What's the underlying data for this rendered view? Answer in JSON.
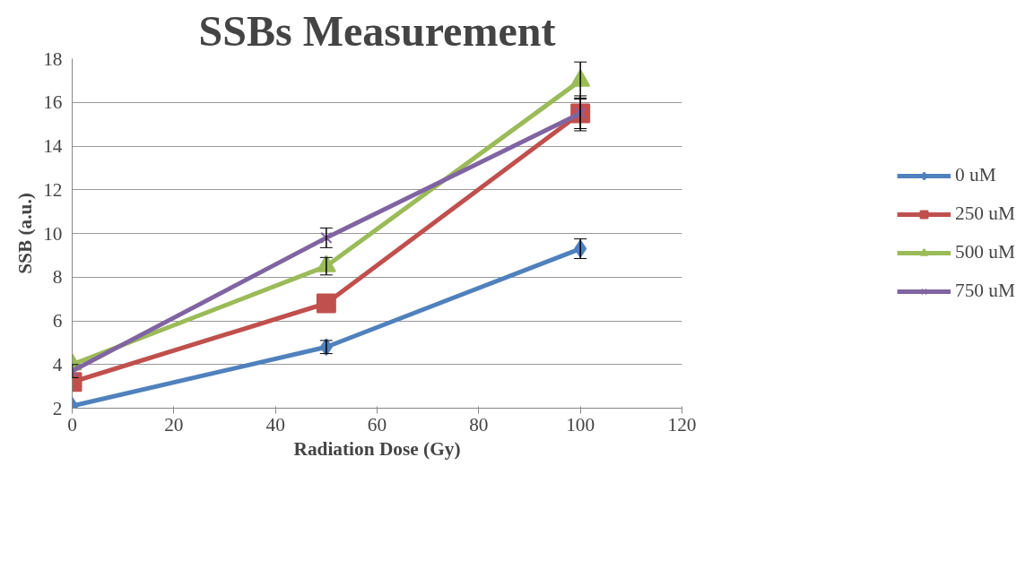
{
  "chart_data": {
    "type": "line",
    "title": "SSBs Measurement",
    "xlabel": "Radiation Dose (Gy)",
    "ylabel": "SSB (a.u.)",
    "x": [
      0,
      50,
      100
    ],
    "series": [
      {
        "name": "0 uM",
        "color": "#4f81bd",
        "marker": "diamond",
        "values": [
          2.1,
          4.8,
          9.3
        ],
        "errors": [
          null,
          0.3,
          0.45
        ]
      },
      {
        "name": "250 uM",
        "color": "#c0504d",
        "marker": "square",
        "values": [
          3.2,
          6.8,
          15.5
        ],
        "errors": [
          null,
          null,
          0.8
        ]
      },
      {
        "name": "500 uM",
        "color": "#9bbb59",
        "marker": "triangle",
        "values": [
          4.0,
          8.5,
          17.0
        ],
        "errors": [
          null,
          0.4,
          0.85
        ]
      },
      {
        "name": "750 uM",
        "color": "#8064a2",
        "marker": "cross",
        "values": [
          3.7,
          9.8,
          15.5
        ],
        "errors": [
          0.3,
          0.45,
          0.7
        ]
      }
    ],
    "xlim": [
      0,
      120
    ],
    "xticks": [
      0,
      20,
      40,
      60,
      80,
      100,
      120
    ],
    "ylim": [
      2,
      18
    ],
    "yticks": [
      2,
      4,
      6,
      8,
      10,
      12,
      14,
      16,
      18
    ],
    "grid": "y",
    "legend": "right"
  }
}
